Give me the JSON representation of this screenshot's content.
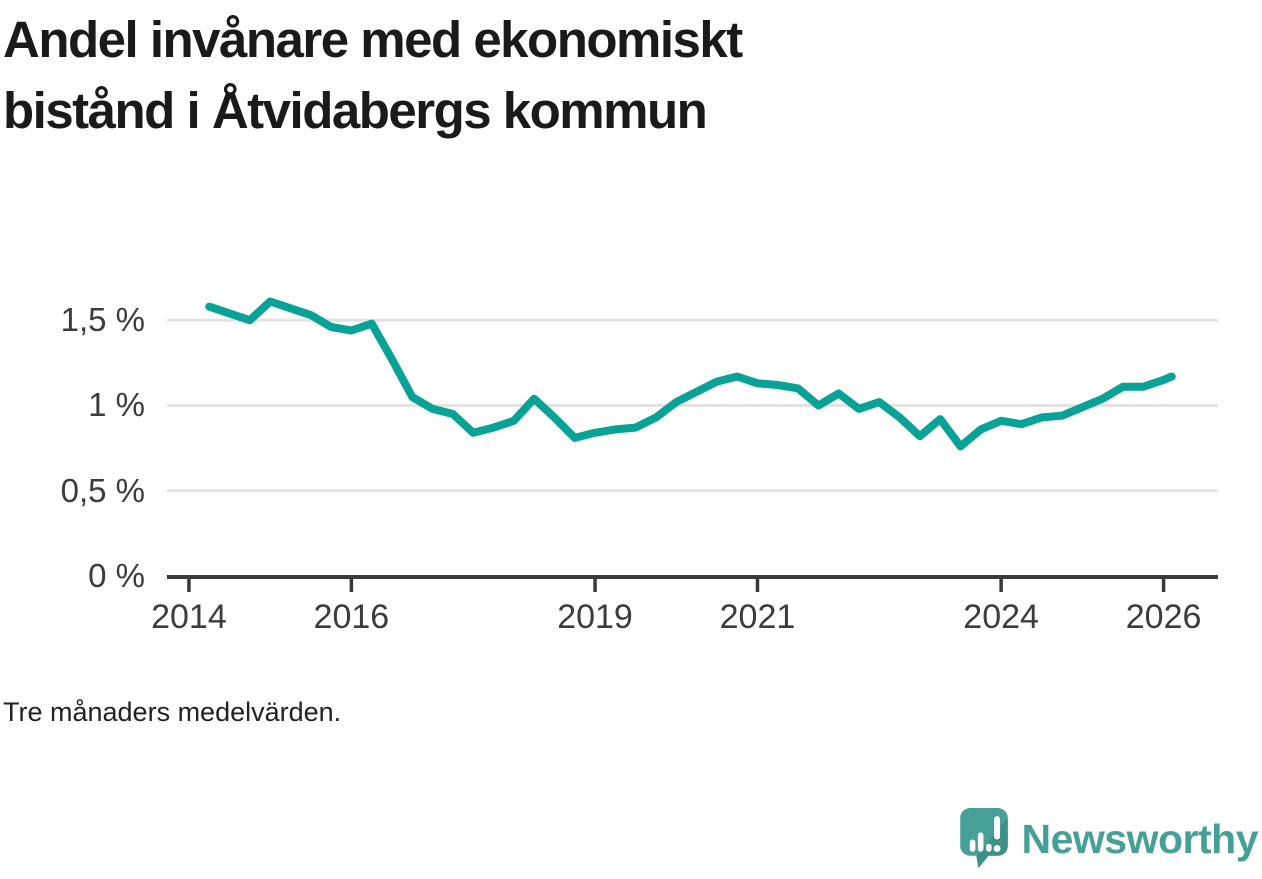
{
  "header": {
    "title_line1": "Andel invånare med ekonomiskt",
    "title_line2": "bistånd i Åtvidabergs kommun"
  },
  "footer": {
    "note": "Tre månaders medelvärden.",
    "brand": "Newsworthy"
  },
  "colors": {
    "line": "#08a296",
    "grid": "#e3e3e3",
    "axis": "#3a3a3a",
    "tick_text": "#3c3c3c",
    "title_text": "#1a1a1a",
    "note_text": "#222222",
    "brand_teal": "#47a097",
    "brand_teal_dark": "#3b9185",
    "background": "#ffffff"
  },
  "chart_data": {
    "type": "line",
    "title": "Andel invånare med ekonomiskt bistånd i Åtvidabergs kommun",
    "subtitle": "Tre månaders medelvärden.",
    "unit": "%",
    "xlabel": "",
    "ylabel": "",
    "grid": "horizontal",
    "legend": "none",
    "xlim": [
      2013.73,
      2026.67
    ],
    "ylim": [
      0,
      1.73
    ],
    "x_ticks": [
      {
        "value": 2014,
        "label": "2014"
      },
      {
        "value": 2016,
        "label": "2016"
      },
      {
        "value": 2019,
        "label": "2019"
      },
      {
        "value": 2021,
        "label": "2021"
      },
      {
        "value": 2024,
        "label": "2024"
      },
      {
        "value": 2026,
        "label": "2026"
      }
    ],
    "y_ticks": [
      {
        "value": 0,
        "label": "0 %"
      },
      {
        "value": 0.5,
        "label": "0,5 %"
      },
      {
        "value": 1,
        "label": "1 %"
      },
      {
        "value": 1.5,
        "label": "1,5 %"
      }
    ],
    "series": [
      {
        "name": "Andel invånare med ekonomiskt bistånd",
        "x": [
          2014.25,
          2014.5,
          2014.75,
          2015.0,
          2015.25,
          2015.5,
          2015.75,
          2016.0,
          2016.25,
          2016.5,
          2016.75,
          2017.0,
          2017.25,
          2017.5,
          2017.75,
          2018.0,
          2018.25,
          2018.5,
          2018.75,
          2019.0,
          2019.25,
          2019.5,
          2019.75,
          2020.0,
          2020.25,
          2020.5,
          2020.75,
          2021.0,
          2021.25,
          2021.5,
          2021.75,
          2022.0,
          2022.25,
          2022.5,
          2022.75,
          2023.0,
          2023.25,
          2023.5,
          2023.75,
          2024.0,
          2024.25,
          2024.5,
          2024.75,
          2025.0,
          2025.25,
          2025.5,
          2025.75,
          2026.0,
          2026.1
        ],
        "y": [
          1.58,
          1.54,
          1.5,
          1.61,
          1.57,
          1.53,
          1.46,
          1.44,
          1.48,
          1.27,
          1.05,
          0.98,
          0.95,
          0.84,
          0.87,
          0.91,
          1.04,
          0.93,
          0.81,
          0.84,
          0.86,
          0.87,
          0.93,
          1.02,
          1.08,
          1.14,
          1.17,
          1.13,
          1.12,
          1.1,
          1.0,
          1.07,
          0.98,
          1.02,
          0.93,
          0.82,
          0.92,
          0.76,
          0.86,
          0.91,
          0.89,
          0.93,
          0.94,
          0.99,
          1.04,
          1.11,
          1.11,
          1.15,
          1.17
        ]
      }
    ]
  }
}
